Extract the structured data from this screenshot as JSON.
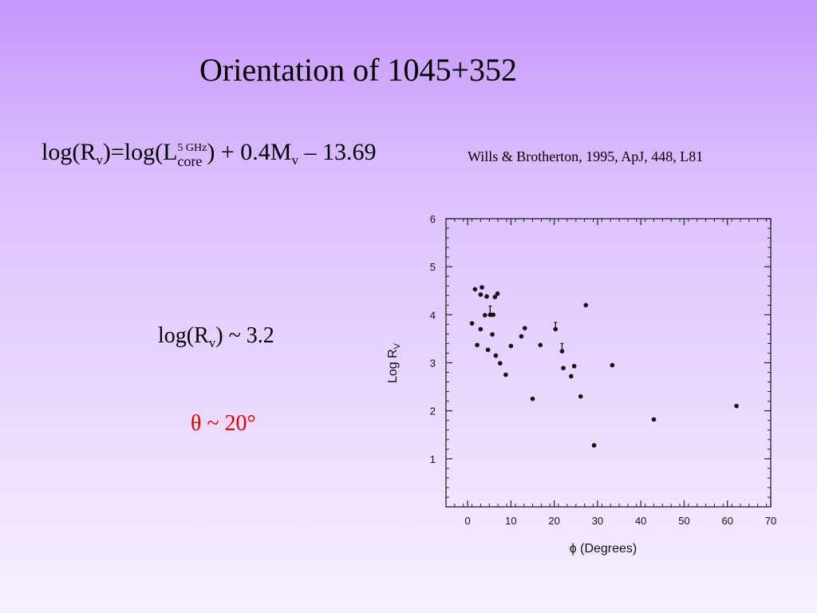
{
  "slide": {
    "title": "Orientation of 1045+352",
    "formula": {
      "p1": "log(R",
      "sub_v1": "v",
      "p2": ")=log(L",
      "sup_freq": "5 GHz",
      "sub_core": "core",
      "p3": ") + 0.4M",
      "sub_v2": "v",
      "p4": " – 13.69"
    },
    "citation": "Wills & Brotherton, 1995, ApJ, 448, L81",
    "result": {
      "p1": "log(R",
      "sub_v": "v",
      "p2": ") ~ 3.2"
    },
    "angle": "θ ~ 20°"
  },
  "colors": {
    "angle_text": "#e00000",
    "background_top": "#c696fb",
    "background_bottom": "#f7f0ff"
  },
  "chart_data": {
    "type": "scatter",
    "xlabel": "ϕ (Degrees)",
    "ylabel_main": "Log R",
    "ylabel_sub": "V",
    "xlim": [
      -5,
      70
    ],
    "ylim": [
      0,
      6
    ],
    "xticks": [
      0,
      10,
      20,
      30,
      40,
      50,
      60,
      70
    ],
    "yticks": [
      1,
      2,
      3,
      4,
      5,
      6
    ],
    "grid": false,
    "points": [
      {
        "x": 1.0,
        "y": 3.82
      },
      {
        "x": 1.7,
        "y": 4.53
      },
      {
        "x": 2.2,
        "y": 3.37
      },
      {
        "x": 3.0,
        "y": 3.7
      },
      {
        "x": 3.0,
        "y": 4.42
      },
      {
        "x": 3.3,
        "y": 4.57
      },
      {
        "x": 4.0,
        "y": 3.99
      },
      {
        "x": 4.4,
        "y": 4.38
      },
      {
        "x": 4.7,
        "y": 3.27
      },
      {
        "x": 5.2,
        "y": 4.0
      },
      {
        "x": 5.7,
        "y": 3.59
      },
      {
        "x": 5.9,
        "y": 4.0
      },
      {
        "x": 6.3,
        "y": 4.37
      },
      {
        "x": 6.5,
        "y": 3.15
      },
      {
        "x": 6.9,
        "y": 4.44
      },
      {
        "x": 7.5,
        "y": 2.99
      },
      {
        "x": 8.8,
        "y": 2.75
      },
      {
        "x": 10.0,
        "y": 3.35
      },
      {
        "x": 12.4,
        "y": 3.55
      },
      {
        "x": 13.2,
        "y": 3.72
      },
      {
        "x": 15.0,
        "y": 2.25
      },
      {
        "x": 16.8,
        "y": 3.37
      },
      {
        "x": 20.3,
        "y": 3.7
      },
      {
        "x": 21.8,
        "y": 3.24
      },
      {
        "x": 22.1,
        "y": 2.89
      },
      {
        "x": 23.9,
        "y": 2.72
      },
      {
        "x": 24.6,
        "y": 2.93
      },
      {
        "x": 26.1,
        "y": 2.3
      },
      {
        "x": 27.3,
        "y": 4.2
      },
      {
        "x": 29.2,
        "y": 1.28
      },
      {
        "x": 33.4,
        "y": 2.95
      },
      {
        "x": 43.0,
        "y": 1.82
      },
      {
        "x": 62.1,
        "y": 2.1
      }
    ],
    "error_bars": [
      {
        "x": 5.2,
        "low": 3.99,
        "high": 4.18
      },
      {
        "x": 20.3,
        "low": 3.7,
        "high": 3.84
      },
      {
        "x": 21.8,
        "low": 3.24,
        "high": 3.4
      }
    ]
  }
}
